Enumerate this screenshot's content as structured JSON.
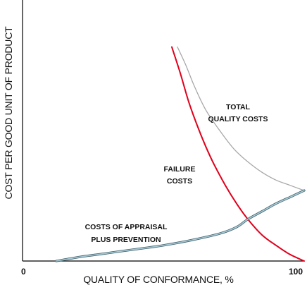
{
  "chart_data": {
    "type": "line",
    "xlabel": "QUALITY OF CONFORMANCE, %",
    "ylabel": "COST PER GOOD UNIT OF PRODUCT",
    "xlim": [
      0,
      100
    ],
    "ylim": [
      0,
      100
    ],
    "x_ticks": [
      "0",
      "100"
    ],
    "grid": false,
    "legend": "none",
    "series": [
      {
        "key": "total",
        "color": "#a8a8a8",
        "points": [
          [
            55,
            82
          ],
          [
            58,
            75
          ],
          [
            61,
            67
          ],
          [
            65,
            58
          ],
          [
            70,
            50
          ],
          [
            75,
            43
          ],
          [
            80,
            38
          ],
          [
            85,
            34
          ],
          [
            90,
            31
          ],
          [
            95,
            29
          ],
          [
            100,
            27
          ]
        ]
      },
      {
        "key": "failure",
        "color": "#e0001b",
        "points": [
          [
            53,
            82
          ],
          [
            56,
            72
          ],
          [
            59,
            61
          ],
          [
            62,
            52
          ],
          [
            65,
            44
          ],
          [
            68,
            37
          ],
          [
            72,
            29
          ],
          [
            76,
            22
          ],
          [
            80,
            16
          ],
          [
            85,
            10
          ],
          [
            90,
            6
          ],
          [
            95,
            2.5
          ],
          [
            100,
            0
          ]
        ]
      },
      {
        "key": "appraisal",
        "color": "#6f98a8",
        "points": [
          [
            12,
            0
          ],
          [
            20,
            1.5
          ],
          [
            30,
            3
          ],
          [
            40,
            4.5
          ],
          [
            50,
            6
          ],
          [
            60,
            8
          ],
          [
            70,
            10.5
          ],
          [
            76,
            13
          ],
          [
            80,
            16
          ],
          [
            85,
            19
          ],
          [
            90,
            22
          ],
          [
            95,
            24.5
          ],
          [
            100,
            27
          ]
        ]
      }
    ],
    "annotations": {
      "total": [
        "TOTAL",
        "QUALITY COSTS"
      ],
      "failure": [
        "FAILURE",
        "COSTS"
      ],
      "appraisal": [
        "COSTS OF APPRAISAL",
        "PLUS PREVENTION"
      ]
    }
  }
}
